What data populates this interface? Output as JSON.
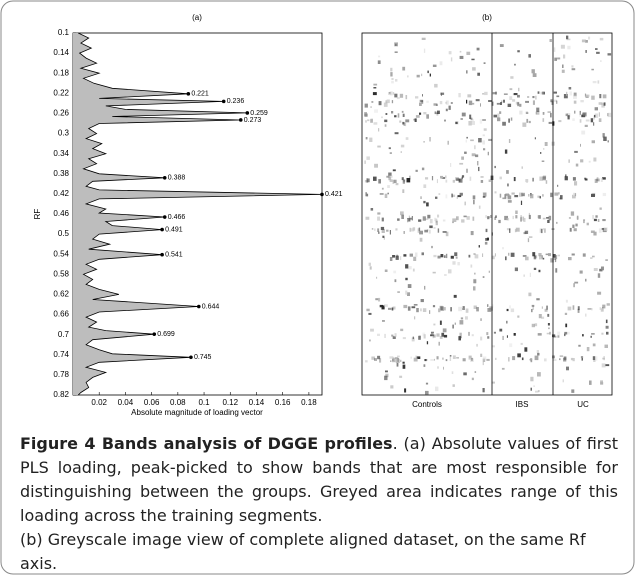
{
  "chart_data": {
    "type": "line",
    "title": "(a)",
    "x_label": "Absolute magnitude of loading vector",
    "y_label": "RF",
    "xlim": [
      0,
      0.19
    ],
    "xticks": [
      0.02,
      0.04,
      0.06,
      0.08,
      0.1,
      0.12,
      0.14,
      0.16,
      0.18
    ],
    "ylim": [
      0.82,
      0.1
    ],
    "yticks": [
      0.1,
      0.14,
      0.18,
      0.22,
      0.26,
      0.3,
      0.34,
      0.38,
      0.42,
      0.46,
      0.5,
      0.54,
      0.58,
      0.62,
      0.66,
      0.7,
      0.74,
      0.78,
      0.82
    ],
    "profile": {
      "color": "#000000",
      "range_color": "#bdbdbd",
      "rf": [
        0.1,
        0.11,
        0.12,
        0.13,
        0.14,
        0.15,
        0.16,
        0.17,
        0.18,
        0.19,
        0.2,
        0.21,
        0.221,
        0.23,
        0.236,
        0.245,
        0.252,
        0.259,
        0.266,
        0.273,
        0.28,
        0.29,
        0.3,
        0.31,
        0.32,
        0.33,
        0.34,
        0.35,
        0.36,
        0.37,
        0.38,
        0.388,
        0.395,
        0.405,
        0.412,
        0.421,
        0.43,
        0.44,
        0.45,
        0.458,
        0.466,
        0.475,
        0.483,
        0.491,
        0.5,
        0.51,
        0.52,
        0.53,
        0.541,
        0.55,
        0.56,
        0.57,
        0.58,
        0.59,
        0.6,
        0.61,
        0.62,
        0.63,
        0.644,
        0.655,
        0.665,
        0.675,
        0.685,
        0.692,
        0.699,
        0.71,
        0.72,
        0.73,
        0.738,
        0.745,
        0.755,
        0.765,
        0.775,
        0.785,
        0.795,
        0.805,
        0.815,
        0.82
      ],
      "values": [
        0.004,
        0.012,
        0.006,
        0.014,
        0.005,
        0.01,
        0.018,
        0.006,
        0.02,
        0.008,
        0.016,
        0.03,
        0.088,
        0.02,
        0.115,
        0.025,
        0.04,
        0.133,
        0.03,
        0.128,
        0.02,
        0.012,
        0.018,
        0.01,
        0.022,
        0.015,
        0.025,
        0.012,
        0.018,
        0.008,
        0.02,
        0.07,
        0.015,
        0.01,
        0.02,
        0.19,
        0.02,
        0.01,
        0.025,
        0.02,
        0.07,
        0.025,
        0.03,
        0.068,
        0.02,
        0.015,
        0.028,
        0.012,
        0.068,
        0.02,
        0.01,
        0.018,
        0.008,
        0.015,
        0.01,
        0.02,
        0.035,
        0.015,
        0.096,
        0.02,
        0.01,
        0.018,
        0.012,
        0.025,
        0.062,
        0.015,
        0.01,
        0.02,
        0.03,
        0.09,
        0.02,
        0.01,
        0.025,
        0.015,
        0.01,
        0.012,
        0.006,
        0.004
      ]
    },
    "peaks": {
      "color": "#000000",
      "rf": [
        0.221,
        0.236,
        0.259,
        0.273,
        0.388,
        0.421,
        0.466,
        0.491,
        0.541,
        0.644,
        0.699,
        0.745
      ],
      "values": [
        0.088,
        0.115,
        0.133,
        0.128,
        0.07,
        0.19,
        0.07,
        0.068,
        0.068,
        0.096,
        0.062,
        0.09
      ]
    }
  },
  "image_panel": {
    "title": "(b)",
    "groups": [
      "Controls",
      "IBS",
      "UC"
    ]
  },
  "caption": {
    "title": "Figure 4 Bands analysis of DGGE profiles",
    "text_a": ". (a) Absolute values of first PLS loading, peak-picked to show bands that are most responsible for distinguishing between the groups. Greyed area indicates range of this loading across the training segments.",
    "text_b": "(b) Greyscale image view of complete aligned dataset, on the same Rf axis."
  }
}
